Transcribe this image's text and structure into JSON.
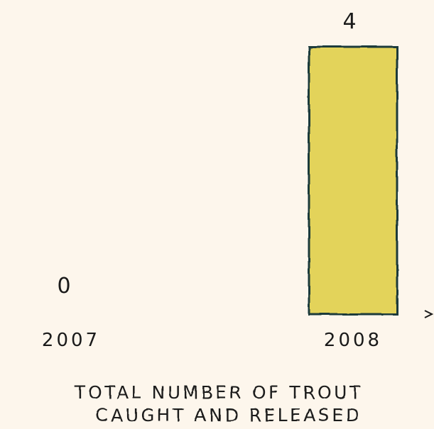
{
  "chart_data": {
    "type": "bar",
    "categories": [
      "2007",
      "2008"
    ],
    "values": [
      0,
      4
    ],
    "value_labels": [
      "0",
      "4"
    ],
    "title": "TOTAL NUMBER OF TROUT CAUGHT AND RELEASED",
    "title_lines": [
      "TOTAL NUMBER OF TROUT",
      "CAUGHT AND RELEASED"
    ],
    "xlabel": "",
    "ylabel": "",
    "ylim": [
      0,
      4
    ],
    "grid": false,
    "colors": {
      "background": "#fdf6ec",
      "bar_fill": "#e3d35a",
      "bar_stroke": "#1f3a3a",
      "axis": "#1a1a1a",
      "text": "#1a1a1a"
    }
  }
}
